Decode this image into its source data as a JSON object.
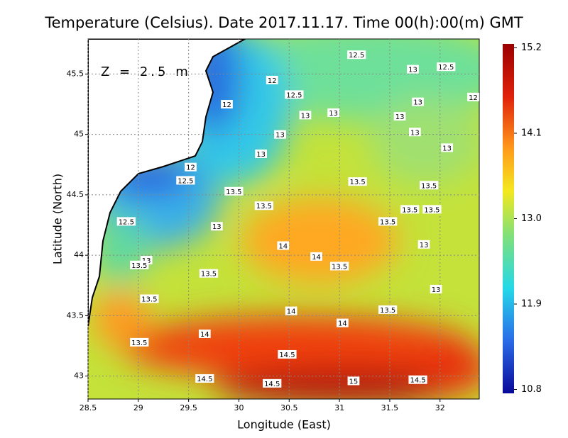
{
  "title": "Temperature (Celsius). Date 2017.11.17. Time 00(h):00(m) GMT",
  "annotation": "Z = 2.5 m",
  "x_axis": {
    "label": "Longitude (East)",
    "lim": [
      28.5,
      32.39
    ],
    "ticks": [
      28.5,
      29,
      29.5,
      30,
      30.5,
      31,
      31.5,
      32
    ]
  },
  "y_axis": {
    "label": "Latitude (North)",
    "lim": [
      42.81,
      45.79
    ],
    "ticks": [
      43,
      43.5,
      44,
      44.5,
      45,
      45.5
    ]
  },
  "colorbar": {
    "lim": [
      10.75,
      15.25
    ],
    "ticks": [
      10.8,
      11.9,
      {
        "value": 13,
        "label": "13.0"
      },
      14.1,
      15.2
    ]
  },
  "contour_labels": [
    {
      "label": "12.5",
      "lon": 31.17,
      "lat": 45.66
    },
    {
      "label": "13",
      "lon": 31.73,
      "lat": 45.54
    },
    {
      "label": "12.5",
      "lon": 32.06,
      "lat": 45.56
    },
    {
      "label": "12",
      "lon": 30.33,
      "lat": 45.45
    },
    {
      "label": "12",
      "lon": 32.33,
      "lat": 45.31
    },
    {
      "label": "12.5",
      "lon": 30.55,
      "lat": 45.33
    },
    {
      "label": "13",
      "lon": 31.78,
      "lat": 45.27
    },
    {
      "label": "12",
      "lon": 29.88,
      "lat": 45.25
    },
    {
      "label": "13",
      "lon": 30.66,
      "lat": 45.16
    },
    {
      "label": "13",
      "lon": 30.94,
      "lat": 45.18
    },
    {
      "label": "13",
      "lon": 31.6,
      "lat": 45.15
    },
    {
      "label": "13",
      "lon": 31.75,
      "lat": 45.02
    },
    {
      "label": "13",
      "lon": 30.41,
      "lat": 45.0
    },
    {
      "label": "13",
      "lon": 32.07,
      "lat": 44.89
    },
    {
      "label": "13",
      "lon": 30.22,
      "lat": 44.84
    },
    {
      "label": "12",
      "lon": 29.52,
      "lat": 44.73
    },
    {
      "label": "12.5",
      "lon": 29.47,
      "lat": 44.62
    },
    {
      "label": "13.5",
      "lon": 29.95,
      "lat": 44.53
    },
    {
      "label": "13.5",
      "lon": 31.18,
      "lat": 44.61
    },
    {
      "label": "13.5",
      "lon": 31.89,
      "lat": 44.58
    },
    {
      "label": "13.5",
      "lon": 30.25,
      "lat": 44.41
    },
    {
      "label": "13.5",
      "lon": 31.7,
      "lat": 44.38
    },
    {
      "label": "13.5",
      "lon": 31.92,
      "lat": 44.38
    },
    {
      "label": "12.5",
      "lon": 28.88,
      "lat": 44.28
    },
    {
      "label": "13",
      "lon": 29.78,
      "lat": 44.24
    },
    {
      "label": "13.5",
      "lon": 31.48,
      "lat": 44.28
    },
    {
      "label": "14",
      "lon": 30.44,
      "lat": 44.08
    },
    {
      "label": "13",
      "lon": 31.84,
      "lat": 44.09
    },
    {
      "label": "14",
      "lon": 30.77,
      "lat": 43.99
    },
    {
      "label": "13",
      "lon": 29.08,
      "lat": 43.96
    },
    {
      "label": "13.5",
      "lon": 29.01,
      "lat": 43.92
    },
    {
      "label": "13.5",
      "lon": 31.0,
      "lat": 43.91
    },
    {
      "label": "13.5",
      "lon": 29.7,
      "lat": 43.85
    },
    {
      "label": "13",
      "lon": 31.96,
      "lat": 43.72
    },
    {
      "label": "13.5",
      "lon": 29.11,
      "lat": 43.64
    },
    {
      "label": "14",
      "lon": 30.52,
      "lat": 43.54
    },
    {
      "label": "13.5",
      "lon": 31.48,
      "lat": 43.55
    },
    {
      "label": "14",
      "lon": 31.03,
      "lat": 43.44
    },
    {
      "label": "14",
      "lon": 29.66,
      "lat": 43.35
    },
    {
      "label": "13.5",
      "lon": 29.01,
      "lat": 43.28
    },
    {
      "label": "14.5",
      "lon": 30.48,
      "lat": 43.18
    },
    {
      "label": "14.5",
      "lon": 29.66,
      "lat": 42.98
    },
    {
      "label": "14.5",
      "lon": 30.33,
      "lat": 42.94
    },
    {
      "label": "15",
      "lon": 31.14,
      "lat": 42.96
    },
    {
      "label": "14.5",
      "lon": 31.78,
      "lat": 42.97
    }
  ]
}
